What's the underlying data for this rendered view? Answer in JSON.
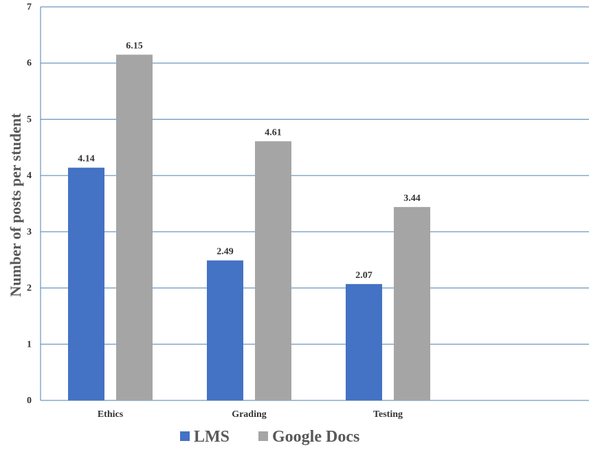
{
  "chart_data": {
    "type": "bar",
    "categories": [
      "Ethics",
      "Grading",
      "Testing"
    ],
    "series": [
      {
        "name": "LMS",
        "values": [
          4.14,
          2.49,
          2.07
        ],
        "color": "#4472c4"
      },
      {
        "name": "Google Docs",
        "values": [
          6.15,
          4.61,
          3.44
        ],
        "color": "#a5a5a5"
      }
    ],
    "data_labels": [
      [
        "4.14",
        "2.49",
        "2.07"
      ],
      [
        "6.15",
        "4.61",
        "3.44"
      ]
    ],
    "ylabel": "Number of posts per student",
    "ylim": [
      0,
      7
    ],
    "yticks": [
      "0",
      "1",
      "2",
      "3",
      "4",
      "5",
      "6",
      "7"
    ],
    "grid": true,
    "legend_position": "bottom-center"
  }
}
